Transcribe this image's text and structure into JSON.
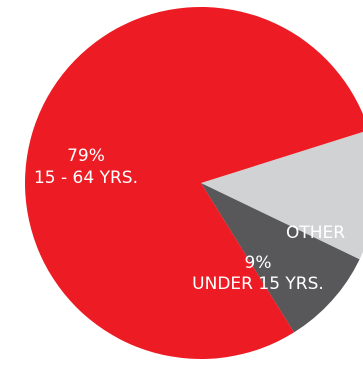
{
  "chart_data": {
    "type": "pie",
    "title": "",
    "slices": [
      {
        "label_value": "79%",
        "label_text": "15 - 64 YRS.",
        "value": 79,
        "color": "#ed1c24"
      },
      {
        "label_value": "9%",
        "label_text": "UNDER 15 YRS.",
        "value": 9,
        "color": "#58585a"
      },
      {
        "label_value": "",
        "label_text": "OTHER",
        "value": 12,
        "color": "#d1d2d4"
      }
    ],
    "legend": "none"
  }
}
